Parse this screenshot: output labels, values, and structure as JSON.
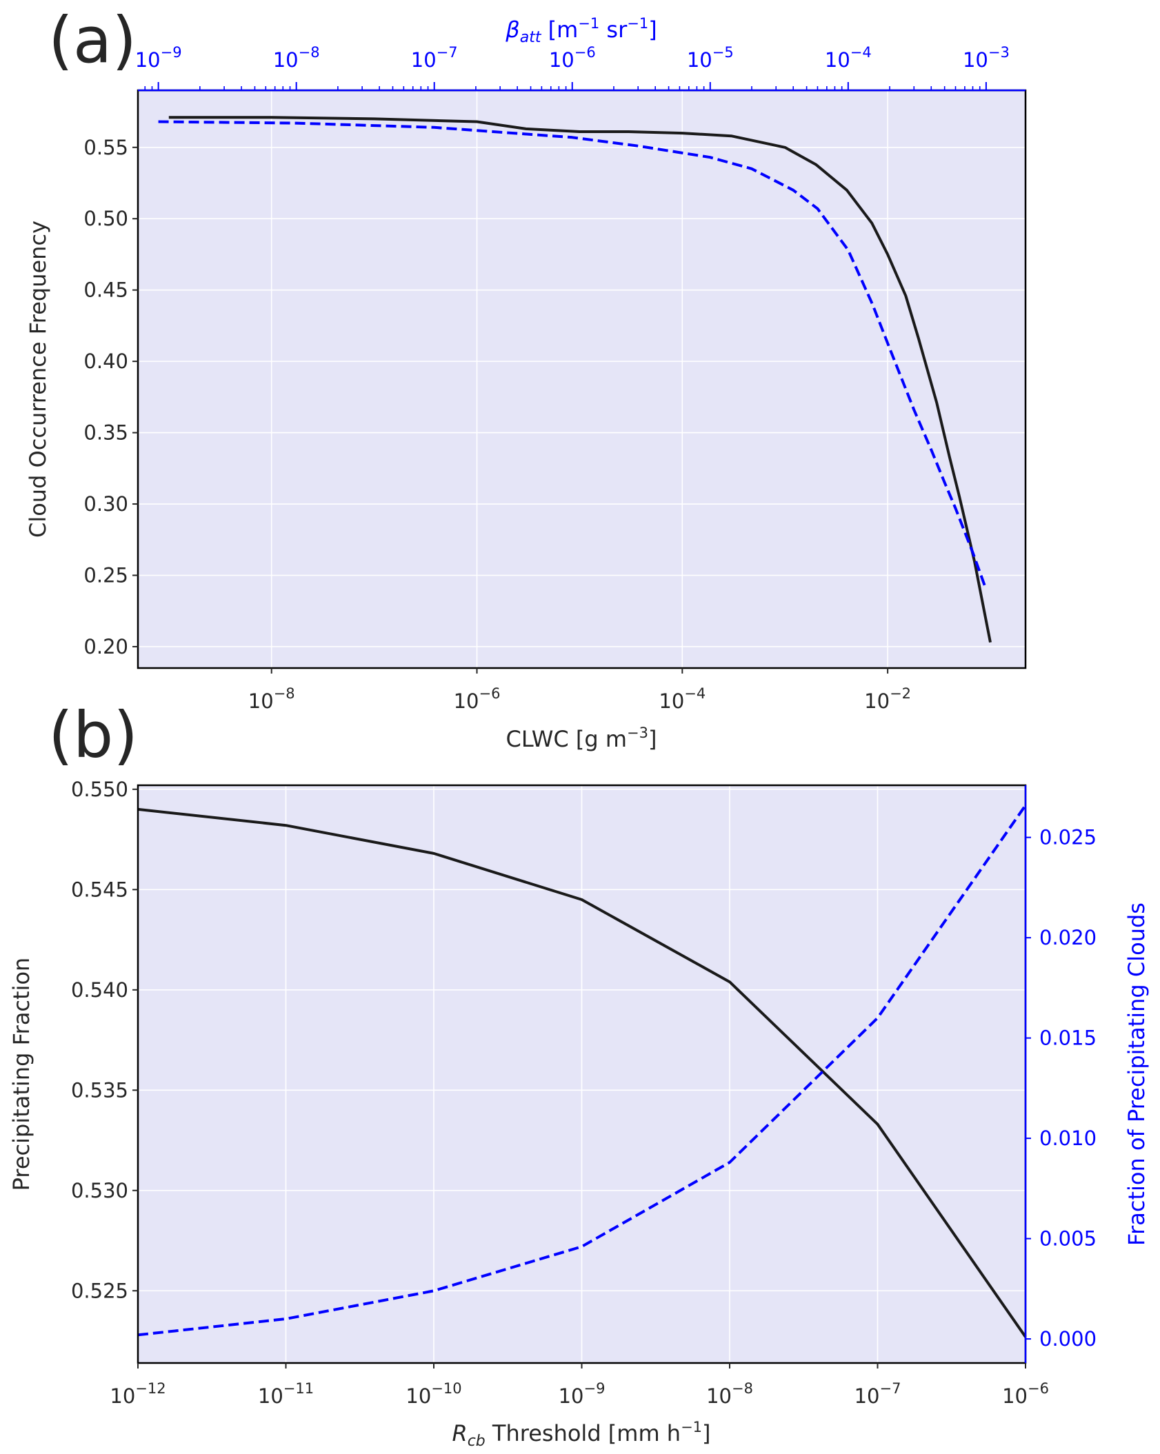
{
  "chart_data": [
    {
      "panel_label": "(a)",
      "type": "line",
      "xlabel": "CLWC [g m^-3]",
      "ylabel": "Cloud Occurrence Frequency",
      "top_xlabel": "β_att [m^-1 sr^-1]",
      "xscale": "log",
      "xlim": [
        5e-10,
        0.22
      ],
      "ylim": [
        0.185,
        0.59
      ],
      "grid": true,
      "x_ticks": [
        {
          "value": 1e-08,
          "label": "10^-8"
        },
        {
          "value": 1e-06,
          "label": "10^-6"
        },
        {
          "value": 0.0001,
          "label": "10^-4"
        },
        {
          "value": 0.01,
          "label": "10^-2"
        }
      ],
      "y_ticks": [
        "0.20",
        "0.25",
        "0.30",
        "0.35",
        "0.40",
        "0.45",
        "0.50",
        "0.55"
      ],
      "top_axis": {
        "scale": "log",
        "xlim": [
          7.11e-10,
          0.00193
        ],
        "ticks": [
          {
            "value": 1e-09,
            "label": "10^-9"
          },
          {
            "value": 1e-08,
            "label": "10^-8"
          },
          {
            "value": 1e-07,
            "label": "10^-7"
          },
          {
            "value": 1e-06,
            "label": "10^-6"
          },
          {
            "value": 1e-05,
            "label": "10^-5"
          },
          {
            "value": 0.0001,
            "label": "10^-4"
          },
          {
            "value": 0.001,
            "label": "10^-3"
          }
        ]
      },
      "series": [
        {
          "color": "#1a1a1a",
          "style": "solid",
          "axis": "bottom",
          "x": [
            1e-09,
            1e-08,
            1e-07,
            1e-06,
            3e-06,
            1e-05,
            3e-05,
            0.0001,
            0.0003,
            0.001,
            0.002,
            0.004,
            0.007,
            0.01,
            0.015,
            0.02,
            0.03,
            0.04,
            0.05,
            0.07,
            0.1
          ],
          "y": [
            0.571,
            0.571,
            0.57,
            0.568,
            0.563,
            0.561,
            0.561,
            0.56,
            0.558,
            0.55,
            0.538,
            0.52,
            0.497,
            0.475,
            0.446,
            0.416,
            0.371,
            0.333,
            0.305,
            0.26,
            0.203
          ]
        },
        {
          "color": "#0000ff",
          "style": "dashed",
          "axis": "top",
          "x": [
            1e-09,
            1e-08,
            1e-07,
            1e-06,
            3e-06,
            1e-05,
            2e-05,
            4e-05,
            6e-05,
            0.0001,
            0.00015,
            0.0002,
            0.0003,
            0.0004,
            0.0005,
            0.0006,
            0.0008,
            0.001
          ],
          "y": [
            0.568,
            0.567,
            0.564,
            0.557,
            0.551,
            0.543,
            0.535,
            0.52,
            0.507,
            0.478,
            0.44,
            0.409,
            0.366,
            0.338,
            0.315,
            0.297,
            0.266,
            0.24
          ]
        }
      ]
    },
    {
      "panel_label": "(b)",
      "type": "line",
      "xlabel": "R_cb Threshold [mm h^-1]",
      "ylabel": "Precipitating Fraction",
      "ylabel_right": "Fraction of Precipitating Clouds",
      "xscale": "log",
      "xlim": [
        1e-12,
        1e-06
      ],
      "ylim": [
        0.5214,
        0.5502
      ],
      "ylim_right": [
        -0.0012,
        0.0276
      ],
      "grid": true,
      "x_ticks": [
        {
          "value": 1e-12,
          "label": "10^-12"
        },
        {
          "value": 1e-11,
          "label": "10^-11"
        },
        {
          "value": 1e-10,
          "label": "10^-10"
        },
        {
          "value": 1e-09,
          "label": "10^-9"
        },
        {
          "value": 1e-08,
          "label": "10^-8"
        },
        {
          "value": 1e-07,
          "label": "10^-7"
        },
        {
          "value": 1e-06,
          "label": "10^-6"
        }
      ],
      "y_ticks": [
        "0.525",
        "0.530",
        "0.535",
        "0.540",
        "0.545",
        "0.550"
      ],
      "y_ticks_right": [
        "0.000",
        "0.005",
        "0.010",
        "0.015",
        "0.020",
        "0.025"
      ],
      "series": [
        {
          "color": "#1a1a1a",
          "style": "solid",
          "axis": "left",
          "x": [
            1e-12,
            1e-11,
            1e-10,
            1e-09,
            1e-08,
            1e-07,
            1e-06
          ],
          "y": [
            0.549,
            0.5482,
            0.5468,
            0.5445,
            0.5404,
            0.5333,
            0.5227
          ]
        },
        {
          "color": "#0000ff",
          "style": "dashed",
          "axis": "right",
          "x": [
            1e-12,
            1e-11,
            1e-10,
            1e-09,
            1e-08,
            1e-07,
            1e-06
          ],
          "y": [
            0.0002,
            0.001,
            0.0024,
            0.0046,
            0.0088,
            0.016,
            0.0266
          ]
        }
      ]
    }
  ]
}
